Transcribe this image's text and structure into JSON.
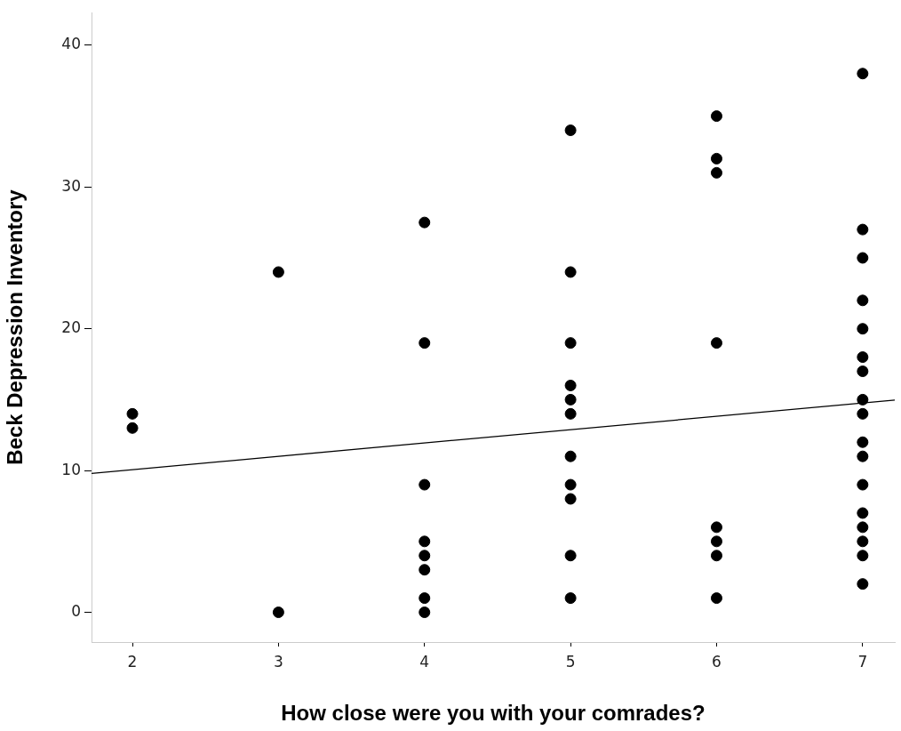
{
  "chart_data": {
    "type": "scatter",
    "xlabel": "How close were you with your comrades?",
    "ylabel": "Beck Depression Inventory",
    "xlim": [
      1.72,
      7.22
    ],
    "xticks": [
      2,
      3,
      4,
      5,
      6,
      7
    ],
    "ylim": [
      -2.1,
      42.3
    ],
    "yticks": [
      0,
      10,
      20,
      30,
      40
    ],
    "grid": false,
    "legend": false,
    "line_style": "solid",
    "series": [
      {
        "color": "#000000",
        "marker": "circle",
        "x": [
          2,
          2,
          3,
          3,
          4,
          4,
          4,
          4,
          4,
          4,
          4,
          4,
          5,
          5,
          5,
          5,
          5,
          5,
          5,
          5,
          5,
          5,
          5,
          6,
          6,
          6,
          6,
          6,
          6,
          6,
          6,
          7,
          7,
          7,
          7,
          7,
          7,
          7,
          7,
          7,
          7,
          7,
          7,
          7,
          7,
          7,
          7,
          7
        ],
        "values": [
          14,
          13,
          24,
          0,
          27.5,
          19,
          9,
          5,
          4,
          3,
          1,
          0,
          34,
          24,
          19,
          16,
          15,
          14,
          11,
          9,
          8,
          4,
          1,
          35,
          32,
          31,
          19,
          6,
          5,
          4,
          1,
          38,
          27,
          25,
          22,
          20,
          18,
          17,
          15,
          14,
          12,
          11,
          9,
          7,
          6,
          5,
          4,
          2
        ]
      },
      {
        "type": "line",
        "marker": "none",
        "color": "#000000",
        "x": [
          1.72,
          7.22
        ],
        "values": [
          9.8,
          14.97
        ]
      }
    ]
  }
}
